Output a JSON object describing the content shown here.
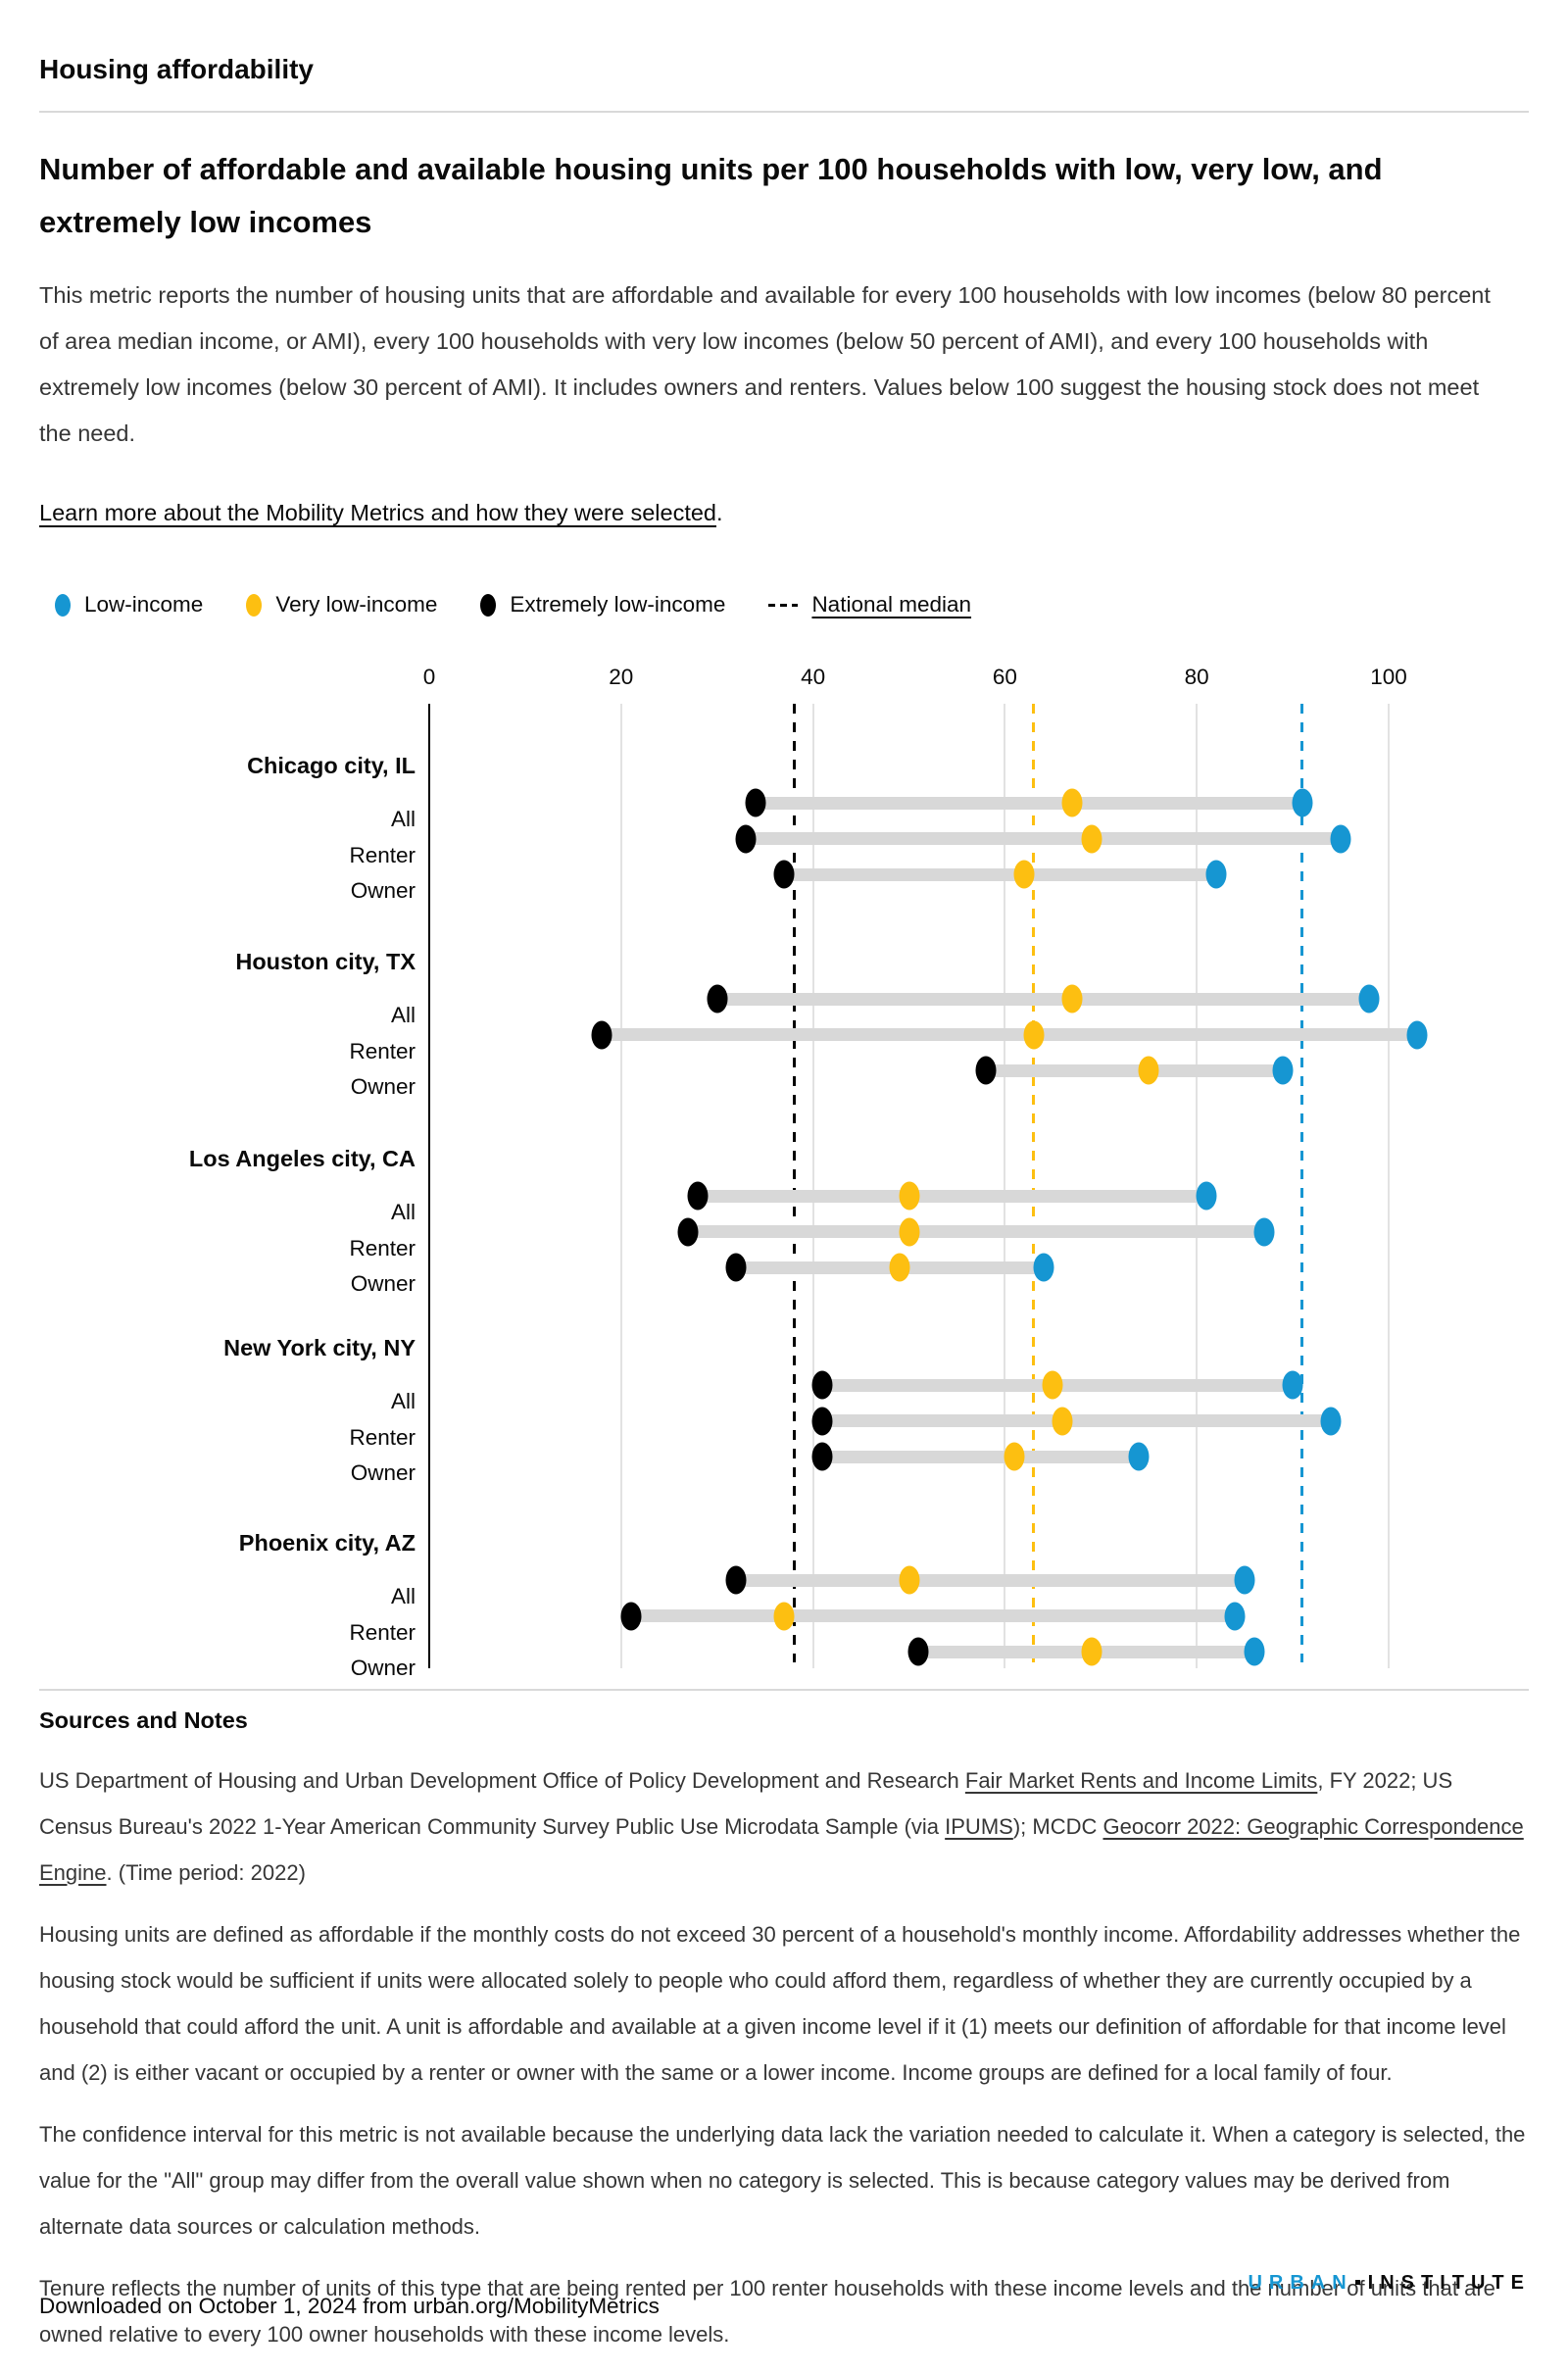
{
  "page": {
    "eyebrow": "Housing affordability",
    "title": "Number of affordable and available housing units per 100 households with low, very low, and extremely low incomes",
    "description": "This metric reports the number of housing units that are affordable and available for every 100 households with low incomes (below 80 percent of area median income, or AMI), every 100 households with very low incomes (below 50 percent of AMI), and every 100 households with extremely low incomes (below 30 percent of AMI). It includes owners and renters. Values below 100 suggest the housing stock does not meet the need.",
    "learn_more_link": "Learn more about the Mobility Metrics and how they were selected",
    "learn_more_suffix": "."
  },
  "legend": {
    "items": [
      {
        "label": "Low-income",
        "color": "#1696d2"
      },
      {
        "label": "Very low-income",
        "color": "#fdbf11"
      },
      {
        "label": "Extremely low-income",
        "color": "#000000"
      }
    ],
    "median_label": "National median"
  },
  "chart_data": {
    "type": "scatter",
    "subtype": "dumbbell-dot-plot",
    "title": "Number of affordable and available housing units per 100 households with low, very low, and extremely low incomes",
    "xlabel": "",
    "ylabel": "",
    "x_ticks": [
      0,
      20,
      40,
      60,
      80,
      100
    ],
    "xlim": [
      0,
      114
    ],
    "grid": "vertical",
    "legend_position": "top-left",
    "series_colors": {
      "low": "#1696d2",
      "very_low": "#fdbf11",
      "extremely_low": "#000000",
      "connector": "#d8d8d8"
    },
    "national_medians": {
      "low": 91,
      "very_low": 63,
      "extremely_low": 38
    },
    "groups": [
      {
        "city": "Chicago city, IL",
        "rows": [
          {
            "label": "All",
            "extremely_low": 34,
            "very_low": 67,
            "low": 91
          },
          {
            "label": "Renter",
            "extremely_low": 33,
            "very_low": 69,
            "low": 95
          },
          {
            "label": "Owner",
            "extremely_low": 37,
            "very_low": 62,
            "low": 82
          }
        ]
      },
      {
        "city": "Houston city, TX",
        "rows": [
          {
            "label": "All",
            "extremely_low": 30,
            "very_low": 67,
            "low": 98
          },
          {
            "label": "Renter",
            "extremely_low": 18,
            "very_low": 63,
            "low": 103
          },
          {
            "label": "Owner",
            "extremely_low": 58,
            "very_low": 75,
            "low": 89
          }
        ]
      },
      {
        "city": "Los Angeles city, CA",
        "rows": [
          {
            "label": "All",
            "extremely_low": 28,
            "very_low": 50,
            "low": 81
          },
          {
            "label": "Renter",
            "extremely_low": 27,
            "very_low": 50,
            "low": 87
          },
          {
            "label": "Owner",
            "extremely_low": 32,
            "very_low": 49,
            "low": 64
          }
        ]
      },
      {
        "city": "New York city, NY",
        "rows": [
          {
            "label": "All",
            "extremely_low": 41,
            "very_low": 65,
            "low": 90
          },
          {
            "label": "Renter",
            "extremely_low": 41,
            "very_low": 66,
            "low": 94
          },
          {
            "label": "Owner",
            "extremely_low": 41,
            "very_low": 61,
            "low": 74
          }
        ]
      },
      {
        "city": "Phoenix city, AZ",
        "rows": [
          {
            "label": "All",
            "extremely_low": 32,
            "very_low": 50,
            "low": 85
          },
          {
            "label": "Renter",
            "extremely_low": 21,
            "very_low": 37,
            "low": 84
          },
          {
            "label": "Owner",
            "extremely_low": 51,
            "very_low": 69,
            "low": 86
          }
        ]
      }
    ]
  },
  "sources": {
    "heading": "Sources and Notes",
    "source_parts": [
      {
        "text": "US Department of Housing and Urban Development Office of Policy Development and Research ",
        "link": false
      },
      {
        "text": "Fair Market Rents and Income Limits",
        "link": true
      },
      {
        "text": ", FY 2022; US Census Bureau's 2022 1-Year American Community Survey Public Use Microdata Sample (via ",
        "link": false
      },
      {
        "text": "IPUMS",
        "link": true
      },
      {
        "text": "); MCDC ",
        "link": false
      },
      {
        "text": "Geocorr 2022: Geographic Correspondence Engine",
        "link": true
      },
      {
        "text": ". (Time period: 2022)",
        "link": false
      }
    ],
    "notes": [
      "Housing units are defined as affordable if the monthly costs do not exceed 30 percent of a household's monthly income. Affordability addresses whether the housing stock would be sufficient if units were allocated solely to people who could afford them, regardless of whether they are currently occupied by a household that could afford the unit. A unit is affordable and available at a given income level if it (1) meets our definition of affordable for that income level and (2) is either vacant or occupied by a renter or owner with the same or a lower income. Income groups are defined for a local family of four.",
      "The confidence interval for this metric is not available because the underlying data lack the variation needed to calculate it. When a category is selected, the value for the \"All\" group may differ from the overall value shown when no category is selected. This is because category values may be derived from alternate data sources or calculation methods.",
      "Tenure reflects the number of units of this type that are being rented per 100 renter households with these income levels and the number of units that are owned relative to every 100 owner households with these income levels."
    ]
  },
  "footer": {
    "downloaded": "Downloaded on October 1, 2024 from urban.org/MobilityMetrics",
    "logo_left": "URBAN",
    "logo_right": "INSTITUTE"
  }
}
